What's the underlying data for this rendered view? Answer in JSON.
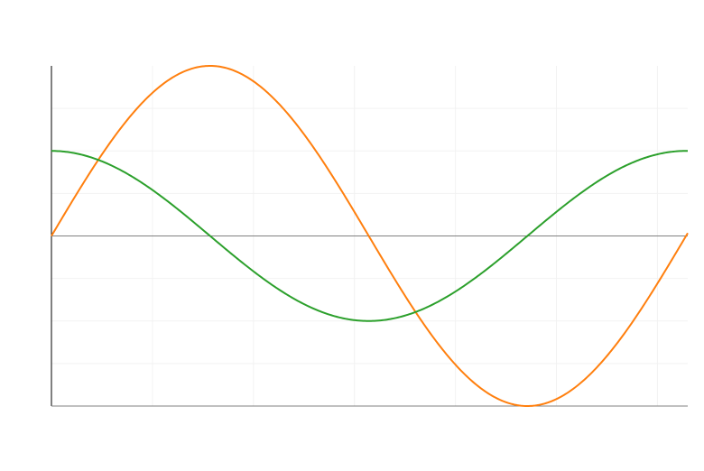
{
  "chart_data": {
    "type": "line",
    "title": "",
    "xlabel": "",
    "ylabel": "",
    "xlim": [
      0,
      6.3
    ],
    "ylim": [
      -2,
      2
    ],
    "grid": true,
    "series": [
      {
        "color": "#ff7f0e",
        "expression": "2*sin(x)",
        "x": [
          0,
          0.5,
          1,
          1.5708,
          2,
          2.5,
          3,
          3.1416,
          3.5,
          4,
          4.5,
          4.7124,
          5,
          5.5,
          6,
          6.3
        ],
        "values": [
          0,
          0.959,
          1.683,
          2,
          1.819,
          1.197,
          0.282,
          0,
          -0.702,
          -1.514,
          -1.955,
          -2,
          -1.918,
          -1.411,
          -0.559,
          0.033
        ]
      },
      {
        "color": "#2ca02c",
        "expression": "cos(x)",
        "x": [
          0,
          0.5,
          1,
          1.5,
          2,
          2.5,
          3,
          3.1416,
          3.5,
          4,
          4.5,
          5,
          5.5,
          6,
          6.2832,
          6.3
        ],
        "values": [
          1,
          0.878,
          0.54,
          0.071,
          -0.416,
          -0.801,
          -0.99,
          -1,
          -0.936,
          -0.654,
          -0.211,
          0.284,
          0.709,
          0.96,
          1,
          1
        ]
      }
    ]
  },
  "colors": {
    "axis": "#000000",
    "zero_line": "#808080",
    "grid": "#f2f2f2",
    "background": "#ffffff"
  }
}
